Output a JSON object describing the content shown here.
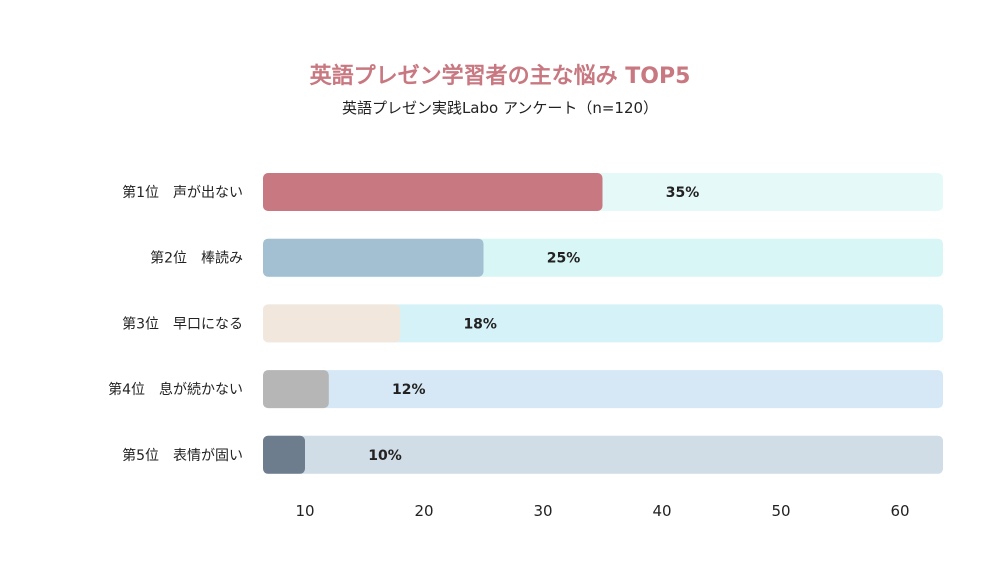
{
  "chart_data": {
    "type": "bar",
    "orientation": "horizontal",
    "title": "英語プレゼン学習者の主な悩み TOP5",
    "subtitle": "英語プレゼン実践Labo アンケート（n=120）",
    "categories": [
      "第1位　声が出ない",
      "第2位　棒読み",
      "第3位　早口になる",
      "第4位　息が続かない",
      "第5位　表情が固い"
    ],
    "values": [
      35,
      25,
      18,
      12,
      10
    ],
    "value_labels": [
      "35%",
      "25%",
      "18%",
      "12%",
      "10%"
    ],
    "bar_colors": [
      "#c87880",
      "#a2c0d2",
      "#f2e7dd",
      "#b6b6b6",
      "#6e7d8e"
    ],
    "track_colors": [
      "#e6f9f9",
      "#d8f6f5",
      "#d6f2f9",
      "#d6e8f5",
      "#d0dce6"
    ],
    "xticks": [
      "10",
      "20",
      "30",
      "40",
      "50",
      "60"
    ],
    "xtick_values": [
      10,
      20,
      30,
      40,
      50,
      60
    ],
    "xlim": [
      0,
      64
    ],
    "xlabel": "",
    "ylabel": "",
    "grid": false
  }
}
